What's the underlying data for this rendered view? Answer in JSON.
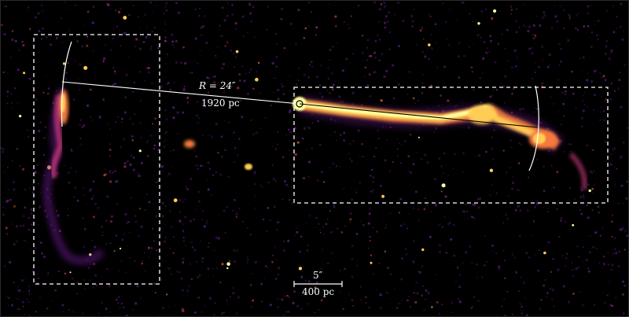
{
  "image": {
    "background_color": "#000000",
    "annotation_color": "#ffffff",
    "emission_colors": [
      "#ffffa0",
      "#ffcc55",
      "#f47a3c",
      "#c3397a",
      "#6a1e8e"
    ]
  },
  "annotations": {
    "radius_label": "R = 24″",
    "radius_distance": "1920 pc",
    "scale_bar_angle": "5″",
    "scale_bar_distance": "400 pc"
  }
}
